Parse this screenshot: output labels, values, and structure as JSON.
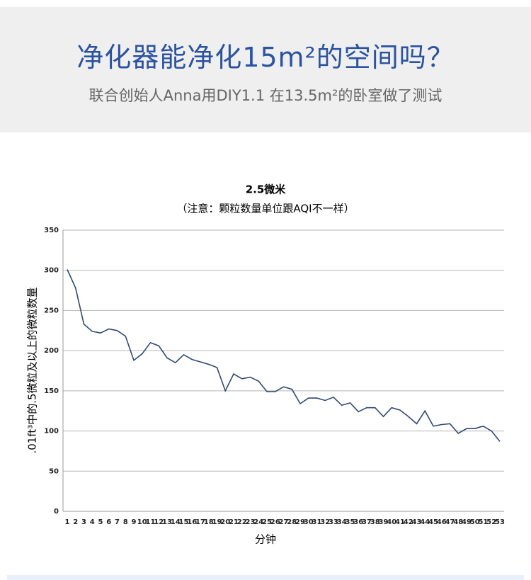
{
  "header": {
    "title": "净化器能净化15m²的空间吗？",
    "subtitle": "联合创始人Anna用DIY1.1 在13.5m²的卧室做了测试"
  },
  "chart_data": {
    "type": "line",
    "title": "2.5微米",
    "subtitle": "（注意：颗粒数量单位跟AQI不一样）",
    "y_label": ".01ft³中的.5微粒及以上的微粒数量",
    "x_label": "分钟",
    "categories": [
      1,
      2,
      3,
      4,
      5,
      6,
      7,
      8,
      9,
      10,
      11,
      12,
      13,
      14,
      15,
      16,
      17,
      18,
      19,
      20,
      21,
      22,
      23,
      24,
      25,
      26,
      27,
      28,
      29,
      30,
      31,
      32,
      33,
      34,
      35,
      36,
      37,
      38,
      39,
      40,
      41,
      42,
      43,
      44,
      45,
      46,
      47,
      48,
      49,
      50,
      51,
      52,
      53
    ],
    "values": [
      301,
      278,
      233,
      224,
      222,
      227,
      225,
      218,
      188,
      196,
      210,
      206,
      191,
      185,
      195,
      189,
      186,
      183,
      179,
      150,
      171,
      165,
      167,
      162,
      149,
      149,
      155,
      152,
      134,
      141,
      141,
      138,
      142,
      132,
      135,
      124,
      129,
      129,
      118,
      129,
      126,
      118,
      109,
      125,
      106,
      108,
      109,
      97,
      103,
      103,
      106,
      100,
      87
    ],
    "color": "#2f4a72",
    "ylim": [
      0,
      350
    ],
    "yticks": [
      0,
      50,
      100,
      150,
      200,
      250,
      300,
      350
    ],
    "grid": true
  }
}
